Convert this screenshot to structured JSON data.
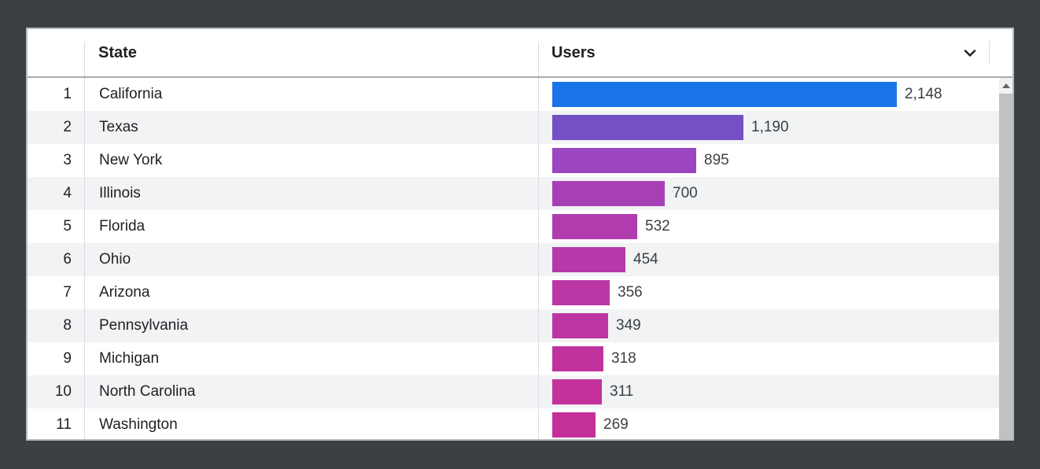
{
  "panel": {
    "columns": [
      {
        "label": "State"
      },
      {
        "label": "Users"
      }
    ],
    "rows": [
      {
        "rank": "1",
        "state": "California",
        "users": 2148,
        "users_label": "2,148",
        "bar_color": "#1a73e8"
      },
      {
        "rank": "2",
        "state": "Texas",
        "users": 1190,
        "users_label": "1,190",
        "bar_color": "#7351c4"
      },
      {
        "rank": "3",
        "state": "New York",
        "users": 895,
        "users_label": "895",
        "bar_color": "#9b45c0"
      },
      {
        "rank": "4",
        "state": "Illinois",
        "users": 700,
        "users_label": "700",
        "bar_color": "#a840b5"
      },
      {
        "rank": "5",
        "state": "Florida",
        "users": 532,
        "users_label": "532",
        "bar_color": "#b03cae"
      },
      {
        "rank": "6",
        "state": "Ohio",
        "users": 454,
        "users_label": "454",
        "bar_color": "#b539a9"
      },
      {
        "rank": "7",
        "state": "Arizona",
        "users": 356,
        "users_label": "356",
        "bar_color": "#ba37a5"
      },
      {
        "rank": "8",
        "state": "Pennsylvania",
        "users": 349,
        "users_label": "349",
        "bar_color": "#bd35a2"
      },
      {
        "rank": "9",
        "state": "Michigan",
        "users": 318,
        "users_label": "318",
        "bar_color": "#c0339f"
      },
      {
        "rank": "10",
        "state": "North Carolina",
        "users": 311,
        "users_label": "311",
        "bar_color": "#c2319c"
      },
      {
        "rank": "11",
        "state": "Washington",
        "users": 269,
        "users_label": "269",
        "bar_color": "#c52f99"
      }
    ]
  },
  "icons": {
    "sort_icon": "chevron-down",
    "scroll_up_icon": "triangle-up"
  },
  "colors": {
    "frame_background": "#3c4043",
    "panel_background": "#ffffff",
    "panel_border": "#b7babd",
    "header_bottom_border": "#a9acaf",
    "row_alt_background": "#f1f3f4",
    "column_divider": "#dadce0",
    "text": "#202124",
    "value_text": "#3c4043",
    "scrollbar_track": "#f1f1f1",
    "scrollbar_thumb": "#c1c1c1",
    "scrollbar_arrow": "#636669",
    "bar_top": "#1a73e8",
    "bar_bottom": "#c52f99"
  },
  "chart_data": {
    "type": "bar",
    "orientation": "horizontal",
    "categories": [
      "California",
      "Texas",
      "New York",
      "Illinois",
      "Florida",
      "Ohio",
      "Arizona",
      "Pennsylvania",
      "Michigan",
      "North Carolina",
      "Washington"
    ],
    "values": [
      2148,
      1190,
      895,
      700,
      532,
      454,
      356,
      349,
      318,
      311,
      269
    ],
    "value_labels": [
      "2,148",
      "1,190",
      "895",
      "700",
      "532",
      "454",
      "356",
      "349",
      "318",
      "311",
      "269"
    ],
    "xlabel": "Users",
    "ylabel": "State",
    "xlim": [
      0,
      2148
    ],
    "grid": false,
    "legend": false,
    "bar_colors": [
      "#1a73e8",
      "#7351c4",
      "#9b45c0",
      "#a840b5",
      "#b03cae",
      "#b539a9",
      "#ba37a5",
      "#bd35a2",
      "#c0339f",
      "#c2319c",
      "#c52f99"
    ]
  }
}
